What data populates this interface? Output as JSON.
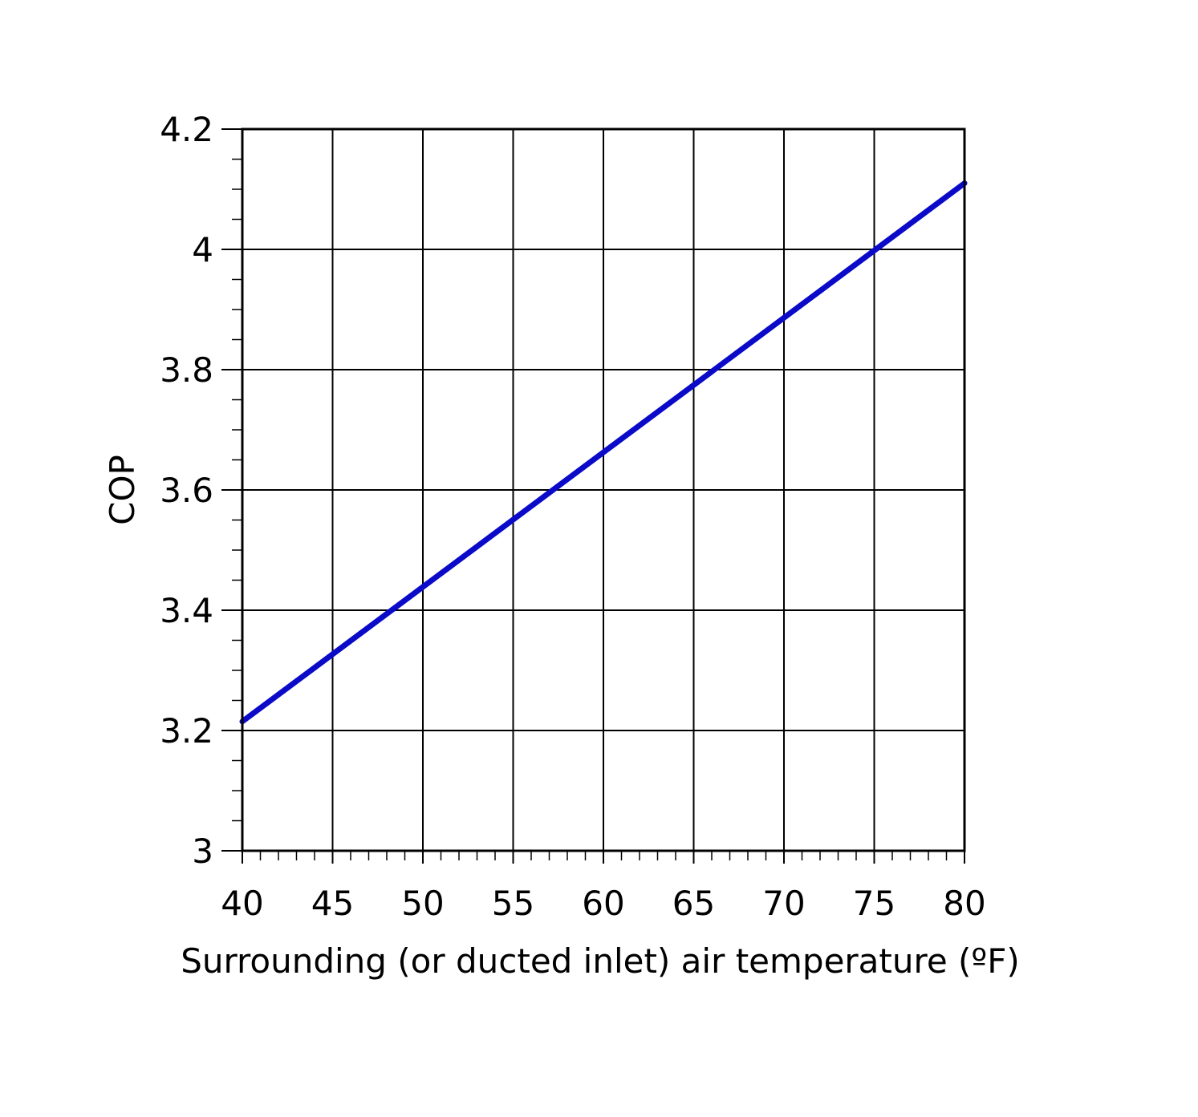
{
  "chart_data": {
    "type": "line",
    "xlabel": "Surrounding (or ducted inlet) air temperature (ºF)",
    "ylabel": "COP",
    "xlim": [
      40,
      80
    ],
    "ylim": [
      3.0,
      4.2
    ],
    "x_ticks": [
      40,
      45,
      50,
      55,
      60,
      65,
      70,
      75,
      80
    ],
    "x_tick_labels": [
      "40",
      "45",
      "50",
      "55",
      "60",
      "65",
      "70",
      "75",
      "80"
    ],
    "y_ticks": [
      3.0,
      3.2,
      3.4,
      3.6,
      3.8,
      4.0,
      4.2
    ],
    "y_tick_labels": [
      "3",
      "3.2",
      "3.4",
      "3.6",
      "3.8",
      "4",
      "4.2"
    ],
    "x_minor_step": 1,
    "y_minor_step": 0.05,
    "grid": true,
    "series": [
      {
        "color": "#0a0ac8",
        "x": [
          40,
          80
        ],
        "y": [
          3.215,
          4.11
        ]
      }
    ]
  }
}
